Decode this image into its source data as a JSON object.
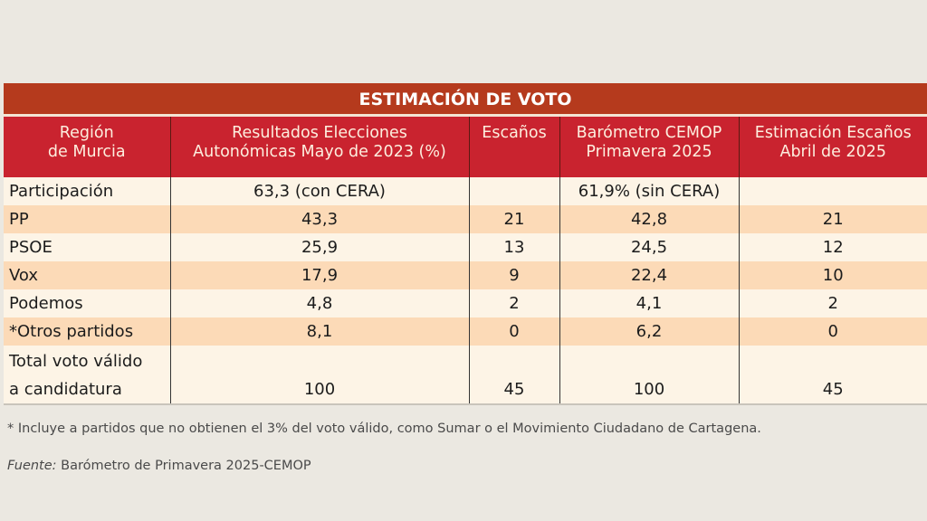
{
  "chart_data": {
    "type": "table",
    "title": "ESTIMACIÓN DE VOTO",
    "columns": [
      "Región de Murcia",
      "Resultados Elecciones Autonómicas Mayo de 2023 (%)",
      "Escaños",
      "Barómetro CEMOP Primavera 2025",
      "Estimación Escaños Abril de 2025"
    ],
    "column_lines": [
      [
        "Región",
        "de Murcia"
      ],
      [
        "Resultados Elecciones",
        "Autonómicas Mayo de 2023 (%)"
      ],
      [
        "Escaños"
      ],
      [
        "Barómetro CEMOP",
        "Primavera 2025"
      ],
      [
        "Estimación Escaños",
        "Abril de 2025"
      ]
    ],
    "rows": [
      [
        "Participación",
        "63,3 (con CERA)",
        "",
        "61,9% (sin CERA)",
        ""
      ],
      [
        "PP",
        "43,3",
        "21",
        "42,8",
        "21"
      ],
      [
        "PSOE",
        "25,9",
        "13",
        "24,5",
        "12"
      ],
      [
        "Vox",
        "17,9",
        "9",
        "22,4",
        "10"
      ],
      [
        "Podemos",
        "4,8",
        "2",
        "4,1",
        "2"
      ],
      [
        "*Otros partidos",
        "8,1",
        "0",
        "6,2",
        "0"
      ]
    ],
    "total_row": {
      "label_lines": [
        "Total voto válido",
        "a candidatura"
      ],
      "values": [
        "100",
        "45",
        "100",
        "45"
      ]
    },
    "colors": {
      "title_bar": "#b53a1d",
      "header": "#c9232f",
      "row_light": "#fdf4e6",
      "row_dark": "#fcdab7",
      "background": "#ebe8e1"
    }
  },
  "footnote": "* Incluye a partidos que no obtienen el 3% del voto válido, como Sumar o el Movimiento Ciudadano de Cartagena.",
  "source": {
    "label": "Fuente:",
    "text": " Barómetro de Primavera 2025-CEMOP"
  }
}
